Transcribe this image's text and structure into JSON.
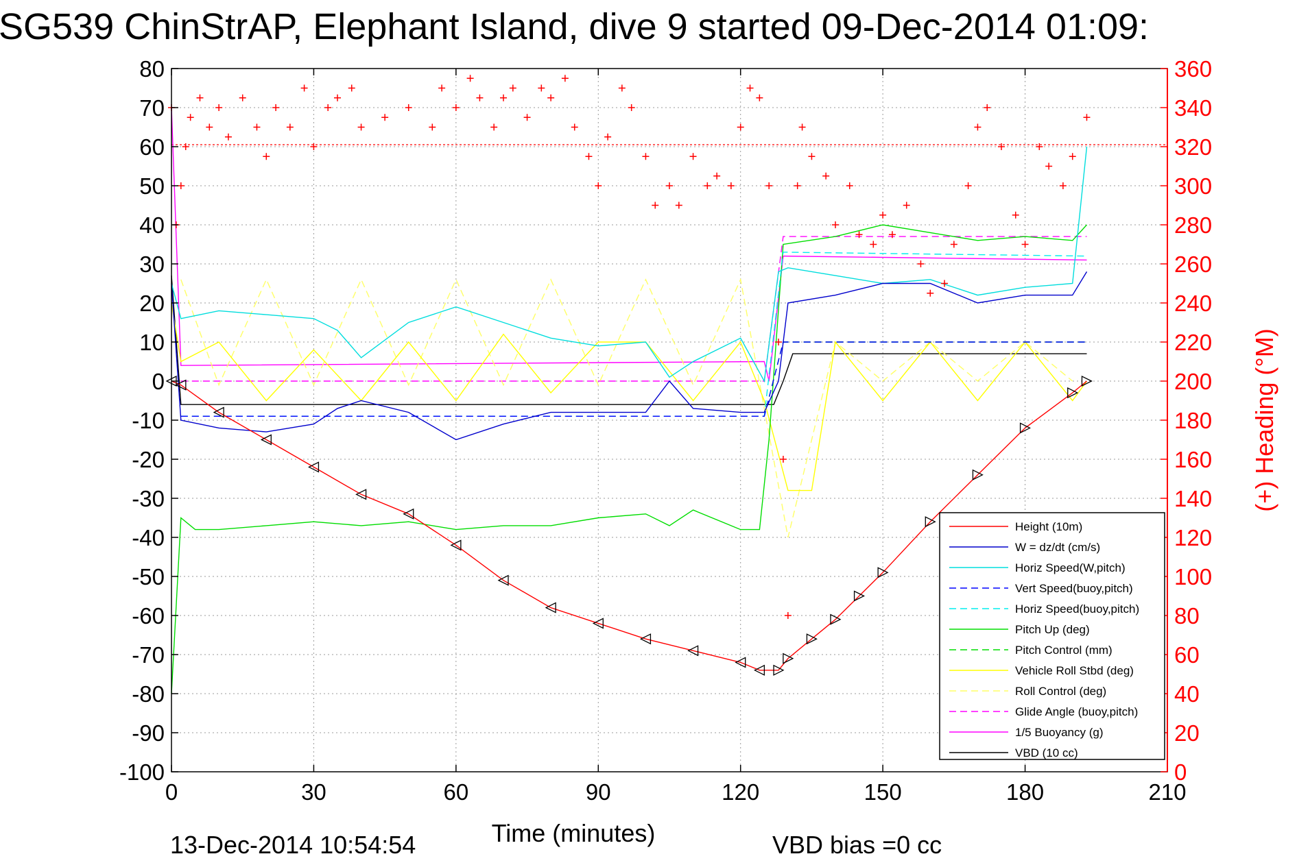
{
  "chart_data": {
    "type": "line",
    "title": "SG539 ChinStrAP, Elephant Island, dive 9 started 09-Dec-2014 01:09:",
    "xlabel": "Time (minutes)",
    "ylabel_right": "(+) Heading (°M)",
    "xlim": [
      0,
      210
    ],
    "ylim": [
      -100,
      80
    ],
    "ylim_right": [
      0,
      360
    ],
    "x_ticks": [
      "0",
      "30",
      "60",
      "90",
      "120",
      "150",
      "180",
      "210"
    ],
    "y_ticks": [
      "80",
      "70",
      "60",
      "50",
      "40",
      "30",
      "20",
      "10",
      "0",
      "-10",
      "-20",
      "-30",
      "-40",
      "-50",
      "-60",
      "-70",
      "-80",
      "-90",
      "-100"
    ],
    "y_ticks_right": [
      "360",
      "340",
      "320",
      "300",
      "280",
      "260",
      "240",
      "220",
      "200",
      "180",
      "160",
      "140",
      "120",
      "100",
      "80",
      "60",
      "40",
      "20",
      "0"
    ],
    "grid": true,
    "legend_position": "bottom-right",
    "footer_left": "13-Dec-2014 10:54:54",
    "footer_center": "VBD bias =0 cc",
    "series": [
      {
        "name": "Height (10m)",
        "color": "#ff0000",
        "dash": "solid",
        "x": [
          0,
          2,
          10,
          20,
          30,
          40,
          50,
          60,
          70,
          80,
          90,
          100,
          110,
          120,
          124,
          128,
          130,
          135,
          140,
          145,
          150,
          160,
          170,
          180,
          190,
          193
        ],
        "y": [
          0,
          -1,
          -8,
          -15,
          -22,
          -29,
          -34,
          -42,
          -51,
          -58,
          -62,
          -66,
          -69,
          -72,
          -74,
          -74,
          -71,
          -66,
          -61,
          -55,
          -49,
          -36,
          -24,
          -12,
          -3,
          0
        ]
      },
      {
        "name": "W = dz/dt (cm/s)",
        "color": "#0000cc",
        "dash": "solid",
        "x": [
          0,
          2,
          10,
          20,
          30,
          35,
          40,
          50,
          60,
          70,
          80,
          90,
          100,
          105,
          110,
          120,
          125,
          128,
          130,
          140,
          150,
          160,
          170,
          180,
          190,
          193
        ],
        "y": [
          25,
          -10,
          -12,
          -13,
          -11,
          -7,
          -5,
          -8,
          -15,
          -11,
          -8,
          -8,
          -8,
          0,
          -7,
          -8,
          -8,
          0,
          20,
          22,
          25,
          25,
          20,
          22,
          22,
          28
        ]
      },
      {
        "name": "Horiz Speed(W,pitch)",
        "color": "#00dddd",
        "dash": "solid",
        "x": [
          0,
          2,
          10,
          20,
          30,
          35,
          40,
          50,
          60,
          70,
          80,
          90,
          100,
          105,
          110,
          120,
          125,
          128,
          130,
          140,
          150,
          160,
          170,
          180,
          190,
          193
        ],
        "y": [
          25,
          16,
          18,
          17,
          16,
          13,
          6,
          15,
          19,
          15,
          11,
          9,
          10,
          1,
          5,
          11,
          0,
          28,
          29,
          27,
          25,
          26,
          22,
          24,
          25,
          60
        ]
      },
      {
        "name": "Vert Speed(buoy,pitch)",
        "color": "#0000ff",
        "dash": "dashed",
        "x": [
          2,
          125,
          129,
          193
        ],
        "y": [
          -9,
          -9,
          10,
          10
        ]
      },
      {
        "name": "Horiz Speed(buoy,pitch)",
        "color": "#00eeee",
        "dash": "dashed",
        "x": [
          2,
          125,
          129,
          193
        ],
        "y": [
          -9,
          -9,
          33,
          32
        ]
      },
      {
        "name": "Pitch Up (deg)",
        "color": "#00dd00",
        "dash": "solid",
        "x": [
          0,
          2,
          5,
          10,
          20,
          30,
          40,
          50,
          60,
          70,
          80,
          90,
          100,
          105,
          110,
          120,
          124,
          126,
          129,
          140,
          150,
          160,
          170,
          180,
          190,
          193
        ],
        "y": [
          -80,
          -35,
          -38,
          -38,
          -37,
          -36,
          -37,
          -36,
          -38,
          -37,
          -37,
          -35,
          -34,
          -37,
          -33,
          -38,
          -38,
          -15,
          35,
          37,
          40,
          38,
          36,
          37,
          36,
          40
        ]
      },
      {
        "name": "Pitch Control (mm)",
        "color": "#00dd00",
        "dash": "dashed",
        "x": [
          2,
          125,
          129,
          193
        ],
        "y": [
          -9,
          -9,
          10,
          10
        ]
      },
      {
        "name": "Vehicle Roll Stbd (deg)",
        "color": "#ffff00",
        "dash": "solid",
        "x": [
          0,
          2,
          10,
          20,
          30,
          40,
          50,
          60,
          70,
          80,
          90,
          100,
          110,
          120,
          125,
          130,
          135,
          140,
          150,
          160,
          170,
          180,
          190,
          193
        ],
        "y": [
          20,
          5,
          10,
          -5,
          8,
          -5,
          10,
          -5,
          12,
          -3,
          10,
          10,
          -5,
          10,
          -5,
          -28,
          -28,
          10,
          -5,
          10,
          -5,
          10,
          -5,
          0
        ]
      },
      {
        "name": "Roll Control (deg)",
        "color": "#ffff66",
        "dash": "dashed",
        "x": [
          2,
          10,
          20,
          30,
          40,
          50,
          60,
          70,
          80,
          90,
          100,
          110,
          120,
          130,
          140,
          150,
          160,
          170,
          180,
          190
        ],
        "y": [
          26,
          -1,
          26,
          -1,
          26,
          -1,
          26,
          -1,
          26,
          -1,
          26,
          -1,
          26,
          -40,
          10,
          0,
          10,
          0,
          10,
          0
        ]
      },
      {
        "name": "Glide Angle (buoy,pitch)",
        "color": "#ff00ff",
        "dash": "dashed",
        "x": [
          2,
          125,
          129,
          193
        ],
        "y": [
          0,
          0,
          37,
          37
        ]
      },
      {
        "name": "1/5 Buoyancy (g)",
        "color": "#ff00ff",
        "dash": "solid",
        "x": [
          0,
          2,
          125,
          126,
          129,
          193
        ],
        "y": [
          70,
          4,
          5,
          0,
          32,
          31
        ]
      },
      {
        "name": "VBD (10 cc)",
        "color": "#000000",
        "dash": "solid",
        "x": [
          0,
          2,
          127,
          129,
          131,
          193
        ],
        "y": [
          27,
          -6,
          -6,
          0,
          7,
          7
        ]
      }
    ],
    "heading_series": {
      "name": "(+) Heading",
      "color": "#ff0000",
      "marker": "+",
      "reference_line_value": 321,
      "x": [
        0,
        1,
        2,
        3,
        4,
        6,
        8,
        10,
        12,
        15,
        18,
        20,
        22,
        25,
        28,
        30,
        33,
        35,
        38,
        40,
        45,
        50,
        55,
        57,
        60,
        63,
        65,
        68,
        70,
        72,
        75,
        78,
        80,
        83,
        85,
        88,
        90,
        92,
        95,
        97,
        100,
        102,
        105,
        107,
        110,
        113,
        115,
        118,
        120,
        122,
        124,
        126,
        128,
        129,
        130,
        132,
        133,
        135,
        138,
        140,
        143,
        145,
        148,
        150,
        152,
        155,
        158,
        160,
        163,
        165,
        168,
        170,
        172,
        175,
        178,
        180,
        183,
        185,
        188,
        190,
        193
      ],
      "y": [
        340,
        280,
        300,
        320,
        335,
        345,
        330,
        340,
        325,
        345,
        330,
        315,
        340,
        330,
        350,
        320,
        340,
        345,
        350,
        330,
        335,
        340,
        330,
        350,
        340,
        355,
        345,
        330,
        345,
        350,
        335,
        350,
        345,
        355,
        330,
        315,
        300,
        325,
        350,
        340,
        315,
        290,
        300,
        290,
        315,
        300,
        305,
        300,
        330,
        350,
        345,
        300,
        220,
        160,
        80,
        300,
        330,
        315,
        305,
        280,
        300,
        275,
        270,
        285,
        275,
        290,
        260,
        245,
        250,
        270,
        300,
        330,
        340,
        320,
        285,
        270,
        320,
        310,
        300,
        315,
        335
      ]
    }
  }
}
